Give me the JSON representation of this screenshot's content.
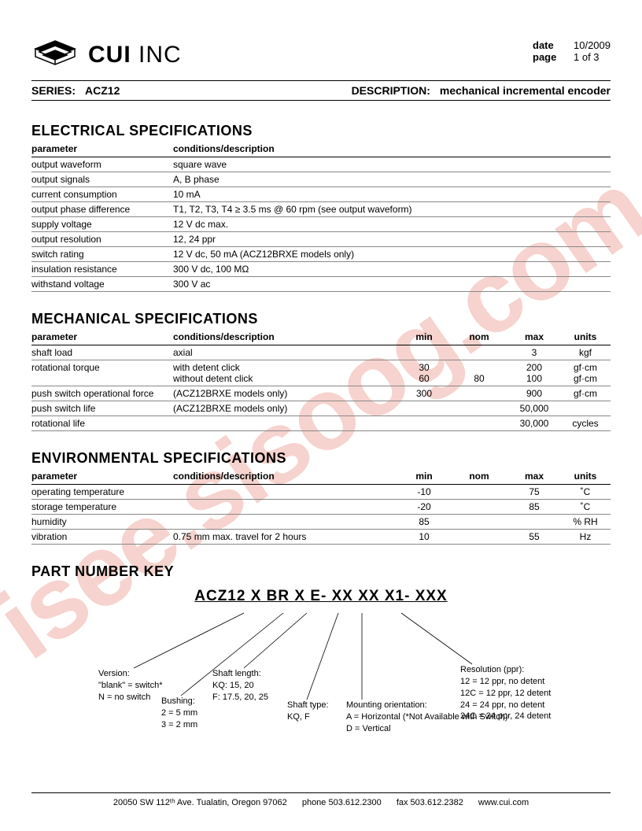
{
  "watermark": "isee.sisoog.com",
  "header": {
    "company": {
      "bold": "CUI",
      "light": " INC"
    },
    "date_label": "date",
    "date": "10/2009",
    "page_label": "page",
    "page": "1 of 3"
  },
  "series": {
    "label": "SERIES:",
    "value": "ACZ12",
    "desc_label": "DESCRIPTION:",
    "desc": "mechanical incremental encoder"
  },
  "sections": {
    "electrical": {
      "title": "ELECTRICAL SPECIFICATIONS",
      "headers": [
        "parameter",
        "conditions/description"
      ],
      "rows": [
        [
          "output waveform",
          "square wave"
        ],
        [
          "output signals",
          "A, B phase"
        ],
        [
          "current consumption",
          "10 mA"
        ],
        [
          "output phase difference",
          "T1, T2, T3, T4 ≥ 3.5 ms @ 60 rpm (see output waveform)"
        ],
        [
          "supply voltage",
          "12 V dc max."
        ],
        [
          "output resolution",
          "12, 24 ppr"
        ],
        [
          "switch rating",
          "12 V dc, 50 mA (ACZ12BRXE models only)"
        ],
        [
          "insulation resistance",
          "300 V dc, 100 MΩ"
        ],
        [
          "withstand voltage",
          "300 V ac"
        ]
      ]
    },
    "mechanical": {
      "title": "MECHANICAL SPECIFICATIONS",
      "headers": [
        "parameter",
        "conditions/description",
        "min",
        "nom",
        "max",
        "units"
      ],
      "rows": [
        [
          "shaft load",
          "axial",
          "",
          "",
          "3",
          "kgf"
        ],
        [
          "rotational torque",
          "with detent click\nwithout detent click",
          "30\n60",
          "\n80",
          "200\n100",
          "gf·cm\ngf·cm"
        ],
        [
          "push switch operational force",
          "(ACZ12BRXE models only)",
          "300",
          "",
          "900",
          "gf·cm"
        ],
        [
          "push switch life",
          "(ACZ12BRXE models only)",
          "",
          "",
          "50,000",
          ""
        ],
        [
          "rotational life",
          "",
          "",
          "",
          "30,000",
          "cycles"
        ]
      ]
    },
    "environmental": {
      "title": "ENVIRONMENTAL SPECIFICATIONS",
      "headers": [
        "parameter",
        "conditions/description",
        "min",
        "nom",
        "max",
        "units"
      ],
      "rows": [
        [
          "operating temperature",
          "",
          "-10",
          "",
          "75",
          "˚C"
        ],
        [
          "storage temperature",
          "",
          "-20",
          "",
          "85",
          "˚C"
        ],
        [
          "humidity",
          "",
          "85",
          "",
          "",
          "% RH"
        ],
        [
          "vibration",
          "0.75 mm max. travel for 2 hours",
          "10",
          "",
          "55",
          "Hz"
        ]
      ]
    }
  },
  "partkey": {
    "title": "PART NUMBER KEY",
    "pattern": "ACZ12 X BR X E- XX XX X1- XXX",
    "notes": {
      "version": "Version:\n\"blank\" = switch*\nN = no switch",
      "bushing": "Bushing:\n2 = 5 mm\n3 = 2 mm",
      "shaftlen": "Shaft length:\nKQ: 15, 20\nF: 17.5, 20, 25",
      "shafttype": "Shaft type:\nKQ, F",
      "mounting": "Mounting orientation:\nA = Horizontal (*Not Available with Switch)\nD = Vertical",
      "resolution": "Resolution (ppr):\n12 = 12 ppr, no detent\n12C = 12 ppr, 12 detent\n24 = 24 ppr, no detent\n24C = 24 ppr, 24 detent"
    }
  },
  "footer": {
    "address": "20050 SW 112ᵗʰ Ave. Tualatin, Oregon 97062",
    "phone": "phone 503.612.2300",
    "fax": "fax 503.612.2382",
    "web": "www.cui.com"
  },
  "style": {
    "text_color": "#000000",
    "border_color": "#000000",
    "row_border": "#888888",
    "watermark_color": "rgba(220,80,60,0.25)",
    "bg": "#ffffff"
  }
}
